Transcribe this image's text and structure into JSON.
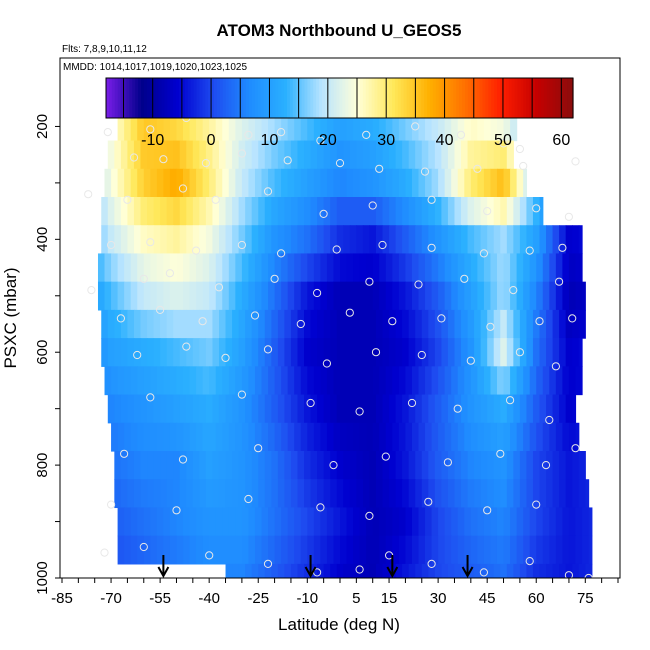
{
  "chart_data": {
    "type": "heatmap",
    "title": "ATOM3 Northbound U_GEOS5",
    "subtitle_flights": "Flts: 7,8,9,10,11,12",
    "subtitle_dates": "MMDD: 1014,1017,1019,1020,1023,1025",
    "xlabel": "Latitude (deg N)",
    "ylabel": "PSXC (mbar)",
    "xlim": [
      -85,
      85
    ],
    "ylim": [
      1000,
      100
    ],
    "x_tick_values": [
      -85,
      -70,
      -55,
      -40,
      -25,
      -10,
      5,
      15,
      30,
      45,
      60,
      75
    ],
    "x_tick_labels": [
      "-85",
      "-70",
      "-55",
      "-40",
      "-25",
      "-10",
      "5",
      "15",
      "30",
      "45",
      "60",
      "75"
    ],
    "y_tick_values": [
      200,
      400,
      600,
      800,
      1000
    ],
    "y_tick_labels": [
      "200",
      "400",
      "600",
      "800",
      "1000"
    ],
    "colorbar": {
      "range": [
        -18,
        62
      ],
      "tick_values": [
        -10,
        0,
        10,
        20,
        30,
        40,
        50,
        60
      ],
      "tick_labels": [
        "-10",
        "0",
        "10",
        "20",
        "30",
        "40",
        "50",
        "60"
      ],
      "colors": [
        "#7a1ee8",
        "#00008b",
        "#0000d0",
        "#1e4cf0",
        "#1f8cff",
        "#2ab0ff",
        "#b8e4ff",
        "#ffffd8",
        "#ffe85a",
        "#ffb000",
        "#ff7000",
        "#ff1e00",
        "#c40000",
        "#8b0d0d"
      ]
    },
    "arrow_latitudes": [
      -54,
      -9,
      16,
      39
    ],
    "pressure_levels": [
      200,
      250,
      300,
      350,
      400,
      450,
      500,
      550,
      600,
      650,
      700,
      750,
      800,
      850,
      900,
      950,
      1000
    ],
    "level_lat_ranges": [
      [
        -68,
        54
      ],
      [
        -71,
        53
      ],
      [
        -72,
        57
      ],
      [
        -73,
        62
      ],
      [
        -73,
        74
      ],
      [
        -74,
        74
      ],
      [
        -74,
        75
      ],
      [
        -73,
        75
      ],
      [
        -73,
        74
      ],
      [
        -72,
        74
      ],
      [
        -71,
        72
      ],
      [
        -70,
        73
      ],
      [
        -69,
        75
      ],
      [
        -69,
        76
      ],
      [
        -68,
        77
      ],
      [
        -68,
        77
      ],
      [
        -35,
        77
      ]
    ],
    "wind_profile": {
      "lat": [
        -80,
        -70,
        -60,
        -50,
        -40,
        -30,
        -20,
        -10,
        0,
        10,
        20,
        30,
        40,
        50,
        60,
        70,
        80
      ],
      "levels": [
        200,
        300,
        400,
        500,
        600,
        700,
        800,
        900,
        1000
      ],
      "u": [
        [
          12,
          24,
          35,
          33,
          28,
          22,
          18,
          14,
          10,
          12,
          16,
          20,
          26,
          24,
          14,
          8,
          6
        ],
        [
          13,
          24,
          34,
          38,
          30,
          20,
          14,
          10,
          6,
          8,
          12,
          18,
          30,
          36,
          16,
          4,
          2
        ],
        [
          10,
          20,
          26,
          28,
          24,
          16,
          8,
          4,
          -2,
          -4,
          2,
          8,
          14,
          18,
          10,
          -6,
          -4
        ],
        [
          6,
          14,
          20,
          22,
          20,
          12,
          4,
          -4,
          -8,
          -8,
          -4,
          2,
          10,
          18,
          6,
          -8,
          -6
        ],
        [
          4,
          10,
          12,
          14,
          16,
          10,
          2,
          -6,
          -8,
          -8,
          -6,
          0,
          8,
          22,
          4,
          -6,
          -4
        ],
        [
          2,
          6,
          8,
          10,
          12,
          8,
          2,
          -4,
          -8,
          -8,
          -4,
          2,
          8,
          12,
          2,
          -6,
          -4
        ],
        [
          0,
          4,
          6,
          6,
          10,
          8,
          4,
          -2,
          -6,
          -8,
          -4,
          2,
          6,
          8,
          0,
          -4,
          -2
        ],
        [
          0,
          2,
          4,
          6,
          8,
          8,
          4,
          0,
          -4,
          -8,
          -6,
          0,
          4,
          6,
          0,
          -4,
          -2
        ],
        [
          0,
          0,
          2,
          4,
          6,
          6,
          2,
          -2,
          -6,
          -8,
          -4,
          0,
          2,
          4,
          -2,
          -4,
          -2
        ]
      ]
    },
    "observations": [
      [
        -47,
        185
      ],
      [
        -71,
        210
      ],
      [
        -58,
        205
      ],
      [
        -28,
        215
      ],
      [
        -18,
        210
      ],
      [
        -6,
        225
      ],
      [
        8,
        215
      ],
      [
        23,
        200
      ],
      [
        37,
        215
      ],
      [
        50,
        230
      ],
      [
        55,
        240
      ],
      [
        -63,
        255
      ],
      [
        -54,
        258
      ],
      [
        -41,
        265
      ],
      [
        -30,
        248
      ],
      [
        -16,
        260
      ],
      [
        0,
        265
      ],
      [
        12,
        275
      ],
      [
        26,
        280
      ],
      [
        42,
        275
      ],
      [
        56,
        270
      ],
      [
        72,
        262
      ],
      [
        -77,
        320
      ],
      [
        -65,
        330
      ],
      [
        -48,
        310
      ],
      [
        -38,
        330
      ],
      [
        -22,
        315
      ],
      [
        -5,
        355
      ],
      [
        10,
        340
      ],
      [
        28,
        330
      ],
      [
        45,
        350
      ],
      [
        60,
        345
      ],
      [
        70,
        360
      ],
      [
        -70,
        410
      ],
      [
        -58,
        405
      ],
      [
        -44,
        420
      ],
      [
        -30,
        410
      ],
      [
        -18,
        425
      ],
      [
        -1,
        418
      ],
      [
        13,
        410
      ],
      [
        28,
        415
      ],
      [
        44,
        425
      ],
      [
        58,
        420
      ],
      [
        68,
        415
      ],
      [
        -76,
        490
      ],
      [
        -60,
        470
      ],
      [
        -52,
        460
      ],
      [
        -37,
        485
      ],
      [
        -20,
        470
      ],
      [
        -7,
        495
      ],
      [
        9,
        475
      ],
      [
        24,
        480
      ],
      [
        38,
        470
      ],
      [
        53,
        490
      ],
      [
        67,
        475
      ],
      [
        -67,
        540
      ],
      [
        -55,
        525
      ],
      [
        -42,
        545
      ],
      [
        -26,
        535
      ],
      [
        -12,
        550
      ],
      [
        3,
        530
      ],
      [
        16,
        545
      ],
      [
        31,
        540
      ],
      [
        46,
        555
      ],
      [
        61,
        545
      ],
      [
        71,
        540
      ],
      [
        -62,
        605
      ],
      [
        -47,
        590
      ],
      [
        -35,
        610
      ],
      [
        -22,
        595
      ],
      [
        -4,
        620
      ],
      [
        11,
        600
      ],
      [
        25,
        605
      ],
      [
        40,
        615
      ],
      [
        55,
        600
      ],
      [
        66,
        625
      ],
      [
        -58,
        680
      ],
      [
        -30,
        675
      ],
      [
        -9,
        690
      ],
      [
        6,
        705
      ],
      [
        22,
        690
      ],
      [
        36,
        700
      ],
      [
        52,
        685
      ],
      [
        64,
        720
      ],
      [
        -66,
        780
      ],
      [
        -48,
        790
      ],
      [
        -25,
        770
      ],
      [
        -2,
        800
      ],
      [
        14,
        785
      ],
      [
        33,
        795
      ],
      [
        49,
        780
      ],
      [
        63,
        800
      ],
      [
        72,
        770
      ],
      [
        -70,
        870
      ],
      [
        -50,
        880
      ],
      [
        -28,
        860
      ],
      [
        -6,
        875
      ],
      [
        9,
        890
      ],
      [
        27,
        865
      ],
      [
        45,
        880
      ],
      [
        60,
        870
      ],
      [
        -72,
        955
      ],
      [
        -60,
        945
      ],
      [
        -40,
        960
      ],
      [
        -22,
        975
      ],
      [
        -7,
        990
      ],
      [
        6,
        985
      ],
      [
        15,
        960
      ],
      [
        28,
        975
      ],
      [
        44,
        990
      ],
      [
        58,
        970
      ],
      [
        70,
        995
      ],
      [
        76,
        1000
      ]
    ]
  }
}
